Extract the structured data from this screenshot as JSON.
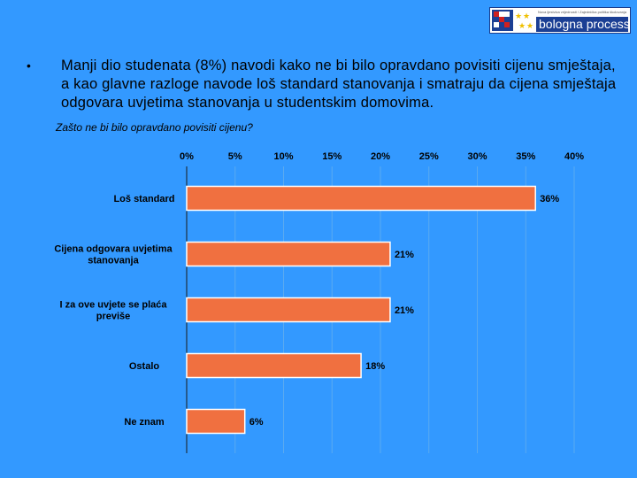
{
  "logo": {
    "tagline": "Nova ljestvica vrijednosti / Zajednička politika školovanja",
    "text": "bologna process"
  },
  "slide": {
    "bullet_symbol": "•",
    "bullet_text": "Manji dio studenata (8%) navodi kako ne bi bilo opravdano povisiti cijenu smještaja, a kao glavne razloge navode loš standard stanovanja i smatraju da cijena smještaja odgovara uvjetima stanovanja u studentskim domovima.",
    "chart_subtitle": "Zašto ne bi bilo opravdano povisiti cijenu?"
  },
  "colors": {
    "background": "#3399ff",
    "bar_fill": "#f07040",
    "bar_stroke": "#ffffff",
    "grid": "#5aaaf0"
  },
  "chart_data": {
    "type": "bar",
    "orientation": "horizontal",
    "title": "Zašto ne bi bilo opravdano povisiti cijenu?",
    "axis_position": "top",
    "xlim": [
      0,
      40
    ],
    "ticks": [
      0,
      5,
      10,
      15,
      20,
      25,
      30,
      35,
      40
    ],
    "tick_labels": [
      "0%",
      "5%",
      "10%",
      "15%",
      "20%",
      "25%",
      "30%",
      "35%",
      "40%"
    ],
    "categories": [
      [
        "Loš standard"
      ],
      [
        "Cijena odgovara uvjetima",
        "stanovanja"
      ],
      [
        "I za ove uvjete se plaća",
        "previše"
      ],
      [
        "Ostalo"
      ],
      [
        "Ne znam"
      ]
    ],
    "values": [
      36,
      21,
      21,
      18,
      6
    ],
    "value_labels": [
      "36%",
      "21%",
      "21%",
      "18%",
      "6%"
    ],
    "grid": true,
    "legend": false
  }
}
